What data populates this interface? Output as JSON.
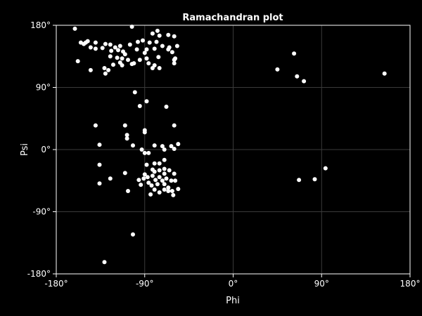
{
  "chart_data": {
    "type": "scatter",
    "title": "Ramachandran plot",
    "xlabel": "Phi",
    "ylabel": "Psi",
    "xlim": [
      -180,
      180
    ],
    "ylim": [
      -180,
      180
    ],
    "xticks": [
      -180,
      -90,
      0,
      90,
      180
    ],
    "yticks": [
      -180,
      -90,
      0,
      90,
      180
    ],
    "xtick_labels": [
      "-180°",
      "-90°",
      "0°",
      "90°",
      "180°"
    ],
    "ytick_labels": [
      "-180°",
      "-90°",
      "0°",
      "90°",
      "180°"
    ],
    "grid": true,
    "background_color": "#000000",
    "point_color": "#ffffff",
    "points": [
      [
        -161,
        175
      ],
      [
        -103,
        178
      ],
      [
        -77,
        172
      ],
      [
        -82,
        168
      ],
      [
        -75,
        165
      ],
      [
        -66,
        166
      ],
      [
        -60,
        164
      ],
      [
        -150,
        155
      ],
      [
        -148,
        157
      ],
      [
        -155,
        155
      ],
      [
        -152,
        153
      ],
      [
        -140,
        155
      ],
      [
        -130,
        153
      ],
      [
        -125,
        152
      ],
      [
        -115,
        150
      ],
      [
        -105,
        152
      ],
      [
        -97,
        156
      ],
      [
        -92,
        158
      ],
      [
        -85,
        155
      ],
      [
        -78,
        156
      ],
      [
        -72,
        150
      ],
      [
        -65,
        148
      ],
      [
        -57,
        150
      ],
      [
        -145,
        148
      ],
      [
        -140,
        146
      ],
      [
        -133,
        147
      ],
      [
        -124,
        143
      ],
      [
        -120,
        148
      ],
      [
        -117,
        144
      ],
      [
        -112,
        142
      ],
      [
        -110,
        138
      ],
      [
        -98,
        145
      ],
      [
        -88,
        145
      ],
      [
        -80,
        146
      ],
      [
        -66,
        145
      ],
      [
        -62,
        141
      ],
      [
        -158,
        128
      ],
      [
        -125,
        135
      ],
      [
        -118,
        133
      ],
      [
        -113,
        132
      ],
      [
        -107,
        130
      ],
      [
        -101,
        125
      ],
      [
        -95,
        130
      ],
      [
        -90,
        140
      ],
      [
        -88,
        132
      ],
      [
        -76,
        134
      ],
      [
        -59,
        132
      ],
      [
        -122,
        123
      ],
      [
        -115,
        126
      ],
      [
        -113,
        122
      ],
      [
        -103,
        124
      ],
      [
        -86,
        125
      ],
      [
        -80,
        122
      ],
      [
        -75,
        118
      ],
      [
        -60,
        125
      ],
      [
        -60,
        130
      ],
      [
        -145,
        115
      ],
      [
        -130,
        110
      ],
      [
        -127,
        115
      ],
      [
        -131,
        118
      ],
      [
        -82,
        118
      ],
      [
        45,
        116
      ],
      [
        62,
        139
      ],
      [
        65,
        106
      ],
      [
        72,
        99
      ],
      [
        154,
        110
      ],
      [
        -100,
        83
      ],
      [
        -88,
        70
      ],
      [
        -95,
        63
      ],
      [
        -68,
        62
      ],
      [
        -90,
        28
      ],
      [
        -90,
        25
      ],
      [
        -140,
        35
      ],
      [
        -110,
        35
      ],
      [
        -108,
        21
      ],
      [
        -108,
        16
      ],
      [
        -60,
        35
      ],
      [
        -63,
        5
      ],
      [
        -56,
        8
      ],
      [
        -136,
        7
      ],
      [
        -102,
        6
      ],
      [
        -80,
        6
      ],
      [
        -72,
        5
      ],
      [
        -70,
        0
      ],
      [
        -60,
        1
      ],
      [
        -93,
        0
      ],
      [
        -90,
        -5
      ],
      [
        -80,
        -20
      ],
      [
        -75,
        -20
      ],
      [
        -86,
        -5
      ],
      [
        -70,
        -15
      ],
      [
        -136,
        -22
      ],
      [
        -88,
        -22
      ],
      [
        -82,
        -29
      ],
      [
        -70,
        -28
      ],
      [
        -90,
        -36
      ],
      [
        -80,
        -32
      ],
      [
        -75,
        -30
      ],
      [
        -70,
        -35
      ],
      [
        -65,
        -30
      ],
      [
        -60,
        -35
      ],
      [
        -87,
        -40
      ],
      [
        -82,
        -38
      ],
      [
        -79,
        -44
      ],
      [
        -75,
        -40
      ],
      [
        -72,
        -45
      ],
      [
        -68,
        -42
      ],
      [
        -63,
        -45
      ],
      [
        -59,
        -45
      ],
      [
        -86,
        -48
      ],
      [
        -83,
        -52
      ],
      [
        -77,
        -50
      ],
      [
        -70,
        -50
      ],
      [
        -66,
        -55
      ],
      [
        -62,
        -60
      ],
      [
        -110,
        -34
      ],
      [
        -125,
        -42
      ],
      [
        -96,
        -44
      ],
      [
        -94,
        -51
      ],
      [
        -91,
        -42
      ],
      [
        -80,
        -58
      ],
      [
        -75,
        -62
      ],
      [
        -70,
        -58
      ],
      [
        -66,
        -60
      ],
      [
        -56,
        -57
      ],
      [
        -61,
        -66
      ],
      [
        -84,
        -65
      ],
      [
        -107,
        -60
      ],
      [
        -136,
        -49
      ],
      [
        67,
        -44
      ],
      [
        83,
        -43
      ],
      [
        94,
        -27
      ],
      [
        -102,
        -123
      ],
      [
        -131,
        -163
      ]
    ]
  }
}
